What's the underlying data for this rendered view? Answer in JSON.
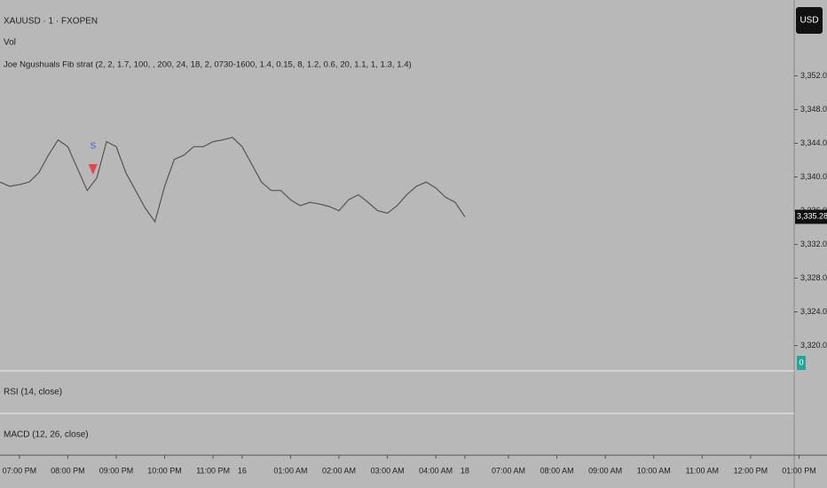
{
  "chart_data": {
    "type": "line",
    "title": "XAUUSD · 1 · FXOPEN",
    "indicators": [
      "Vol",
      "Joe Ngushuals Fib strat (2, 2, 1.7, 100, , 200, 24, 18, 2, 0730-1600, 1.4, 0.15, 8, 1.2, 0.6, 20, 1.1, 1, 1.3, 1.4)"
    ],
    "lower_panes": [
      "RSI (14, close)",
      "MACD (12, 26, close)"
    ],
    "currency": "USD",
    "volume_badge": "0",
    "x": [
      -0.4,
      -0.2,
      0,
      0.2,
      0.4,
      0.6,
      0.8,
      1,
      1.2,
      1.4,
      1.6,
      1.8,
      2,
      2.2,
      2.4,
      2.6,
      2.8,
      3,
      3.2,
      3.4,
      3.6,
      3.8,
      4,
      4.2,
      4.4,
      4.6,
      4.8,
      5,
      5.2,
      5.4,
      5.6,
      5.8,
      6,
      6.2,
      6.4,
      6.6,
      6.8,
      7,
      7.2,
      7.4,
      7.6,
      7.8,
      8,
      8.2,
      8.4,
      8.6,
      8.8,
      9,
      9.2
    ],
    "series": [
      {
        "color": "#555555",
        "values": [
          3339.4,
          3338.9,
          3339.1,
          3339.4,
          3340.5,
          3342.6,
          3344.4,
          3343.6,
          3341.0,
          3338.4,
          3339.9,
          3344.2,
          3343.6,
          3340.5,
          3338.4,
          3336.3,
          3334.7,
          3338.9,
          3342.1,
          3342.6,
          3343.6,
          3343.6,
          3344.2,
          3344.4,
          3344.7,
          3343.6,
          3341.5,
          3339.4,
          3338.4,
          3338.4,
          3337.3,
          3336.6,
          3337.0,
          3336.8,
          3336.5,
          3336.0,
          3337.3,
          3337.9,
          3337.0,
          3336.0,
          3335.7,
          3336.6,
          3337.9,
          3338.9,
          3339.4,
          3338.7,
          3337.6,
          3337.0,
          3335.28
        ]
      }
    ],
    "last_price": {
      "value": 3335.28,
      "label": "3,335.28"
    },
    "signals": [
      {
        "label": "S",
        "x": 1.52,
        "value": 3341,
        "color": "#e8434f"
      }
    ],
    "xlim": [
      -0.4,
      16
    ],
    "xticks": [
      {
        "value": 0,
        "label": "07:00 PM"
      },
      {
        "value": 1,
        "label": "08:00 PM"
      },
      {
        "value": 2,
        "label": "09:00 PM"
      },
      {
        "value": 3,
        "label": "10:00 PM"
      },
      {
        "value": 4,
        "label": "11:00 PM"
      },
      {
        "value": 4.6,
        "label": "16"
      },
      {
        "value": 5.6,
        "label": "01:00 AM"
      },
      {
        "value": 6.6,
        "label": "02:00 AM"
      },
      {
        "value": 7.6,
        "label": "03:00 AM"
      },
      {
        "value": 8.6,
        "label": "04:00 AM"
      },
      {
        "value": 9.2,
        "label": "18"
      },
      {
        "value": 10.1,
        "label": "07:00 AM"
      },
      {
        "value": 11.1,
        "label": "08:00 AM"
      },
      {
        "value": 12.1,
        "label": "09:00 AM"
      },
      {
        "value": 13.1,
        "label": "10:00 AM"
      },
      {
        "value": 14.1,
        "label": "11:00 AM"
      },
      {
        "value": 15.1,
        "label": "12:00 PM"
      },
      {
        "value": 16.1,
        "label": "01:00 PM"
      }
    ],
    "ylim": [
      3317,
      3361
    ],
    "yticks": [
      {
        "value": 3352,
        "label": "3,352.00"
      },
      {
        "value": 3348,
        "label": "3,348.00"
      },
      {
        "value": 3344,
        "label": "3,344.00"
      },
      {
        "value": 3340,
        "label": "3,340.00"
      },
      {
        "value": 3336,
        "label": "3,336.00"
      },
      {
        "value": 3332,
        "label": "3,332.00"
      },
      {
        "value": 3328,
        "label": "3,328.00"
      },
      {
        "value": 3324,
        "label": "3,324.00"
      },
      {
        "value": 3320,
        "label": "3,320.00"
      }
    ]
  }
}
